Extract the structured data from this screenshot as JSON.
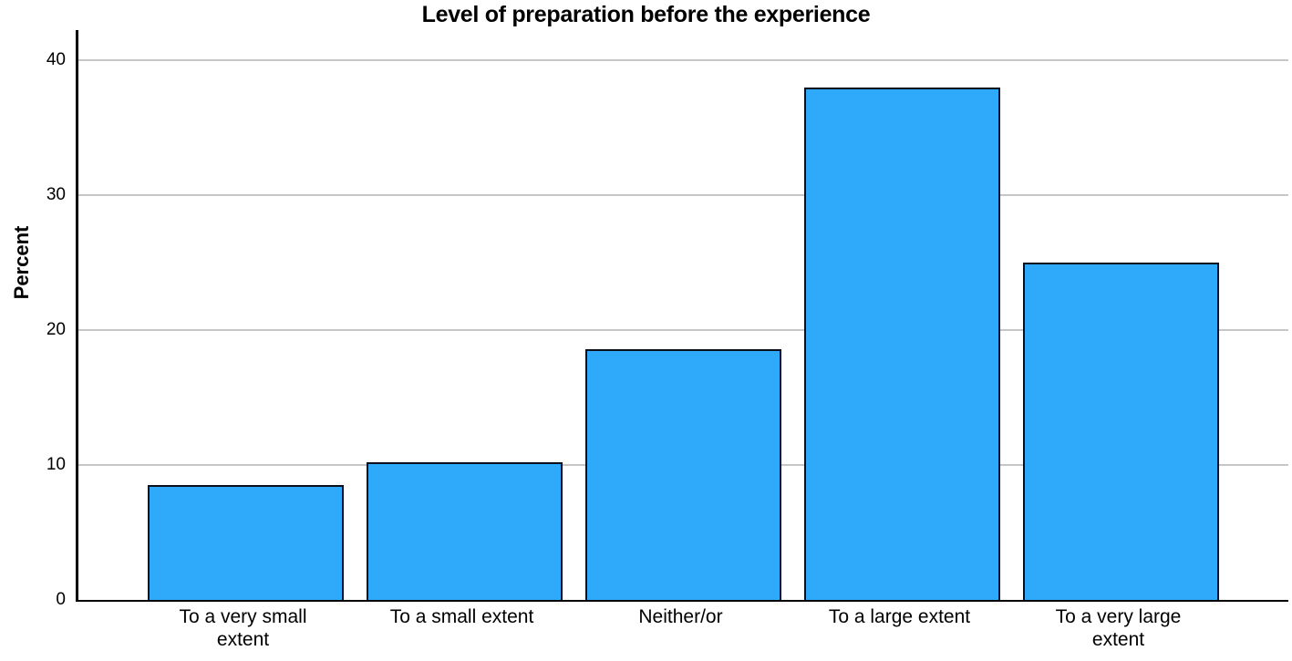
{
  "chart_data": {
    "type": "bar",
    "title": "Level of preparation before the experience",
    "xlabel": "",
    "ylabel": "Percent",
    "categories": [
      "To a very small extent",
      "To a small extent",
      "Neither/or",
      "To a large extent",
      "To a very large extent"
    ],
    "values": [
      8.5,
      10.2,
      18.6,
      38.0,
      25.0
    ],
    "yticks": [
      0,
      10,
      20,
      30,
      40
    ],
    "ylim": [
      0,
      42.2
    ],
    "grid": "horizontal-only",
    "legend_position": "none",
    "colors": {
      "bar_fill": "#2FA9FA",
      "bar_border": "#0B0F1C",
      "gridline": "#C6C6C6",
      "axis": "#000000",
      "text": "#000000"
    }
  }
}
